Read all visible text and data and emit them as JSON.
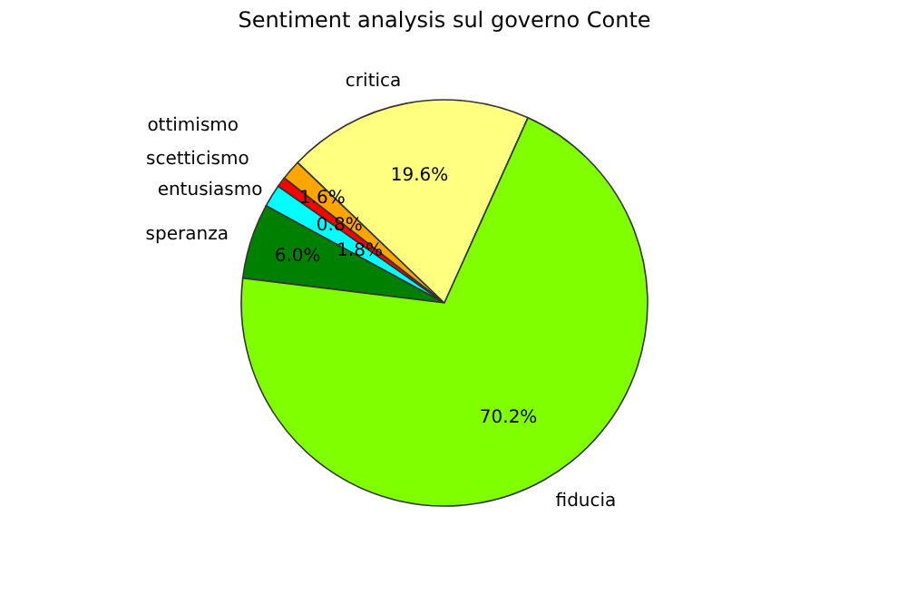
{
  "chart_data": {
    "type": "pie",
    "title": "Sentiment analysis sul governo Conte",
    "categories": [
      "fiducia",
      "critica",
      "ottimismo",
      "scetticismo",
      "entusiasmo",
      "speranza"
    ],
    "values": [
      70.2,
      19.6,
      1.6,
      0.8,
      1.8,
      6.0
    ],
    "colors": [
      "#7fff00",
      "#ffff80",
      "#ffa500",
      "#ff0000",
      "#00ffff",
      "#008000"
    ],
    "value_labels": [
      "70.2%",
      "19.6%",
      "1.6%",
      "0.8%",
      "1.8%",
      "6.0%"
    ],
    "legend": false
  }
}
